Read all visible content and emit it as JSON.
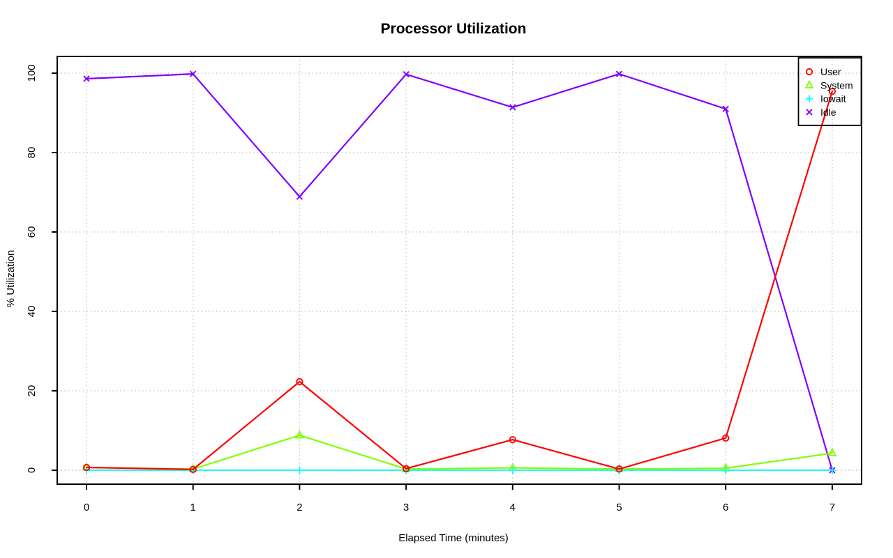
{
  "page": {
    "background": "#FFFFFF"
  },
  "chart_data": {
    "type": "line",
    "title": "Processor Utilization",
    "xlabel": "Elapsed Time (minutes)",
    "ylabel": "% Utilization",
    "x": [
      0,
      1,
      2,
      3,
      4,
      5,
      6,
      7
    ],
    "xticks": [
      0,
      1,
      2,
      3,
      4,
      5,
      6,
      7
    ],
    "yticks": [
      0,
      20,
      40,
      60,
      80,
      100
    ],
    "xlim": [
      0,
      7
    ],
    "ylim": [
      0,
      100
    ],
    "grid": "dotted",
    "grid_color": "#C8C8C8",
    "axis_color": "#000000",
    "legend": {
      "position": "top-right",
      "border": true,
      "transparent_background": true,
      "entries": [
        "User",
        "System",
        "Iowait",
        "Idle"
      ]
    },
    "series": [
      {
        "name": "User",
        "color": "#FF0000",
        "marker": "circle",
        "values": [
          0.7,
          0.2,
          22.3,
          0.4,
          7.7,
          0.3,
          8.1,
          95.4
        ]
      },
      {
        "name": "System",
        "color": "#80FF00",
        "marker": "triangle",
        "values": [
          0.7,
          0.3,
          8.8,
          0.3,
          0.6,
          0.3,
          0.5,
          4.3
        ]
      },
      {
        "name": "Iowait",
        "color": "#00FFFF",
        "marker": "plus",
        "values": [
          0,
          0,
          0,
          0,
          0,
          0,
          0,
          0
        ]
      },
      {
        "name": "Idle",
        "color": "#8000FF",
        "marker": "x",
        "values": [
          98.6,
          99.8,
          68.9,
          99.7,
          91.4,
          99.8,
          91.0,
          0
        ]
      }
    ]
  }
}
